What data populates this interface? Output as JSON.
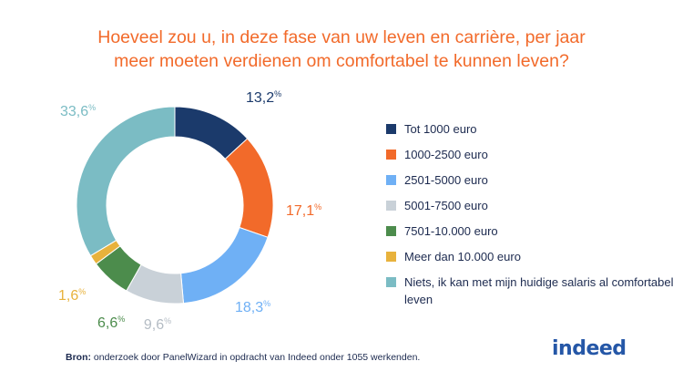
{
  "title": {
    "line1": "Hoeveel zou u, in deze fase van uw leven en carrière, per jaar",
    "line2": "meer moeten verdienen om comfortabel te kunnen leven?"
  },
  "chart_data": {
    "type": "pie",
    "donut": true,
    "title": "Hoeveel zou u, in deze fase van uw leven en carrière, per jaar meer moeten verdienen om comfortabel te kunnen leven?",
    "legend_position": "right",
    "slices": [
      {
        "label": "Tot 1000 euro",
        "value": 13.2,
        "display": "13,2",
        "color": "#1b3a6b"
      },
      {
        "label": "1000-2500 euro",
        "value": 17.1,
        "display": "17,1",
        "color": "#f26a2a"
      },
      {
        "label": "2501-5000 euro",
        "value": 18.3,
        "display": "18,3",
        "color": "#6fb0f5"
      },
      {
        "label": "5001-7500 euro",
        "value": 9.6,
        "display": "9,6",
        "color": "#c9d1d8"
      },
      {
        "label": "7501-10.000 euro",
        "value": 6.6,
        "display": "6,6",
        "color": "#4c8c4c"
      },
      {
        "label": "Meer dan 10.000 euro",
        "value": 1.6,
        "display": "1,6",
        "color": "#e8b23c"
      },
      {
        "label": "Niets, ik kan met mijn huidige salaris al comfortabel leven",
        "value": 33.6,
        "display": "33,6",
        "color": "#7bbcc4"
      }
    ],
    "percent_sign": "%"
  },
  "legend": [
    {
      "label": "Tot 1000 euro",
      "color": "#1b3a6b"
    },
    {
      "label": "1000-2500 euro",
      "color": "#f26a2a"
    },
    {
      "label": "2501-5000 euro",
      "color": "#6fb0f5"
    },
    {
      "label": "5001-7500 euro",
      "color": "#c9d1d8"
    },
    {
      "label": "7501-10.000 euro",
      "color": "#4c8c4c"
    },
    {
      "label": "Meer dan 10.000 euro",
      "color": "#e8b23c"
    },
    {
      "label": "Niets, ik kan met mijn huidige salaris al comfortabel leven",
      "color": "#7bbcc4"
    }
  ],
  "footer": {
    "prefix": "Bron:",
    "text": " onderzoek door PanelWizard in opdracht van Indeed onder 1055 werkenden."
  },
  "logo": {
    "text": "indeed",
    "color": "#2557a7"
  }
}
